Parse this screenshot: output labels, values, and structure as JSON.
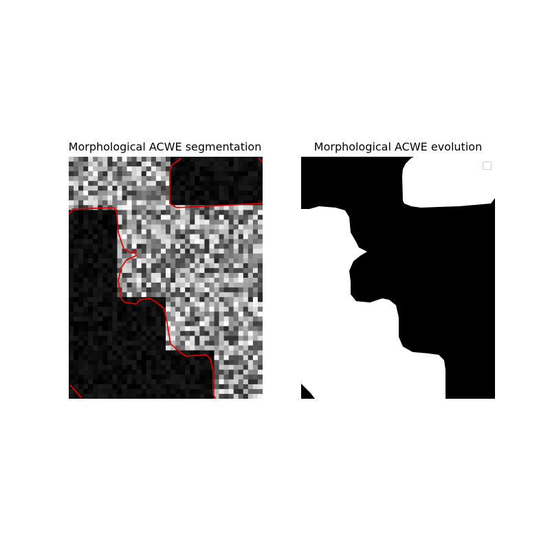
{
  "figure": {
    "left_title": "Morphological ACWE segmentation",
    "right_title": "Morphological ACWE evolution"
  },
  "chart_data": [
    {
      "type": "heatmap",
      "title": "Morphological ACWE segmentation",
      "xlabel": "",
      "ylabel": "",
      "axes": "off",
      "image_grid": [
        40,
        50
      ],
      "colormap": "gray",
      "overlay": {
        "type": "contour",
        "color": "#dd0000"
      }
    },
    {
      "type": "heatmap",
      "title": "Morphological ACWE evolution",
      "xlabel": "",
      "ylabel": "",
      "axes": "off",
      "colormap": "binary",
      "legend": {
        "placement": "top-right",
        "entries": []
      }
    }
  ],
  "colors": {
    "contour": "#dd0000",
    "foreground": "#ffffff",
    "background": "#000000"
  }
}
